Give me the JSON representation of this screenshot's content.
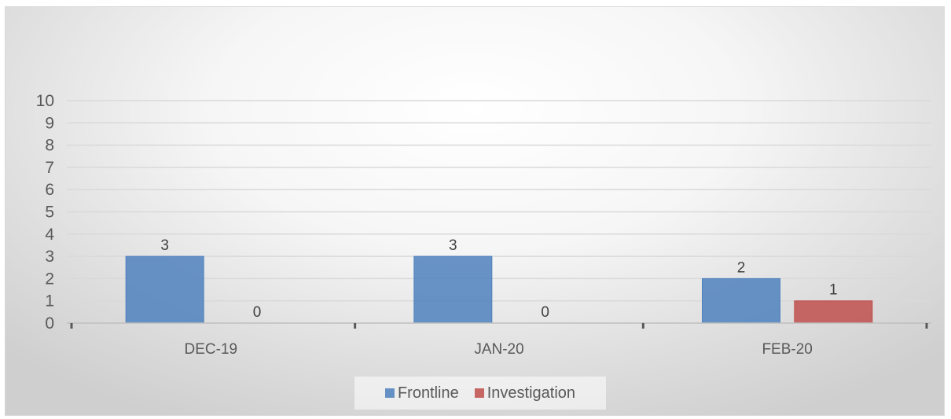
{
  "colors": {
    "frontline": "#4f81bd",
    "investigation": "#c0504d",
    "grid": "#d9d9d9",
    "axis_text": "#595959"
  },
  "chart_data": {
    "type": "bar",
    "categories": [
      "DEC-19",
      "JAN-20",
      "FEB-20"
    ],
    "series": [
      {
        "name": "Frontline",
        "values": [
          3,
          3,
          2
        ]
      },
      {
        "name": "Investigation",
        "values": [
          0,
          0,
          1
        ]
      }
    ],
    "data_labels": [
      {
        "series": "Frontline",
        "values": [
          "3",
          "3",
          "2"
        ]
      },
      {
        "series": "Investigation",
        "values": [
          "0",
          "0",
          "1"
        ]
      }
    ],
    "ylim": [
      0,
      10
    ],
    "yticks": [
      "0",
      "1",
      "2",
      "3",
      "4",
      "5",
      "6",
      "7",
      "8",
      "9",
      "10"
    ],
    "grid": true,
    "legend_position": "bottom",
    "title": "",
    "xlabel": "",
    "ylabel": ""
  }
}
